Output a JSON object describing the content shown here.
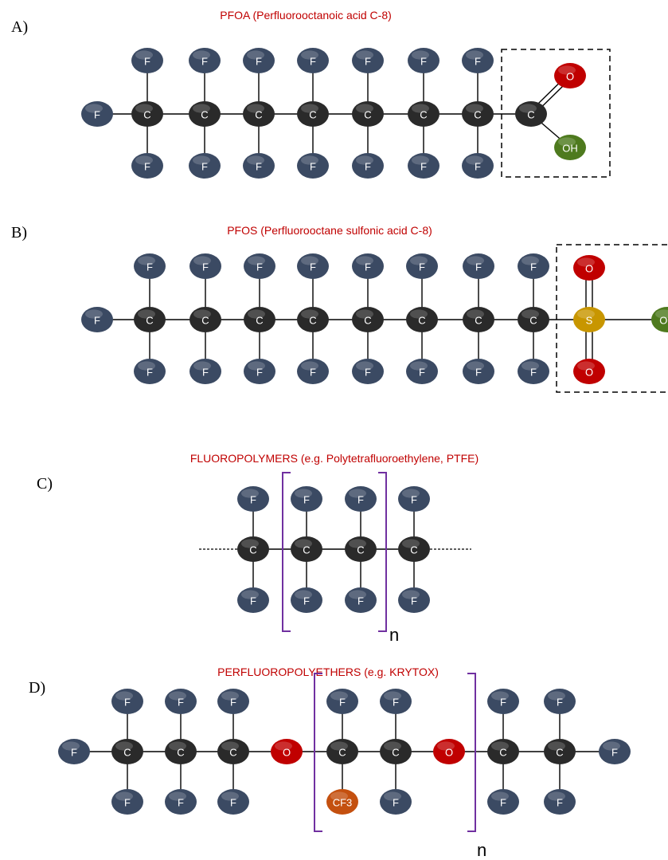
{
  "colors": {
    "fluorine": "#3b4a63",
    "carbon": "#2a2a2a",
    "oxygen": "#c00000",
    "sulfur": "#c89600",
    "hydroxyl": "#4e7a1e",
    "cf3": "#c4500f",
    "title": "#c00000",
    "bracket": "#7030a0"
  },
  "panels": [
    {
      "letter": "A)",
      "title": "PFOA (Perfluorooctanoic acid C-8)"
    },
    {
      "letter": "B)",
      "title": "PFOS (Perfluorooctane sulfonic acid C-8)"
    },
    {
      "letter": "C)",
      "title": "FLUOROPOLYMERS (e.g. Polytetrafluoroethylene, PTFE)"
    },
    {
      "letter": "D)",
      "title": "PERFLUOROPOLYETHERS (e.g. KRYTOX)"
    }
  ],
  "atom_labels": {
    "F": "F",
    "C": "C",
    "O": "O",
    "S": "S",
    "OH": "OH",
    "CF3": "CF3"
  },
  "repeat_label": "n"
}
